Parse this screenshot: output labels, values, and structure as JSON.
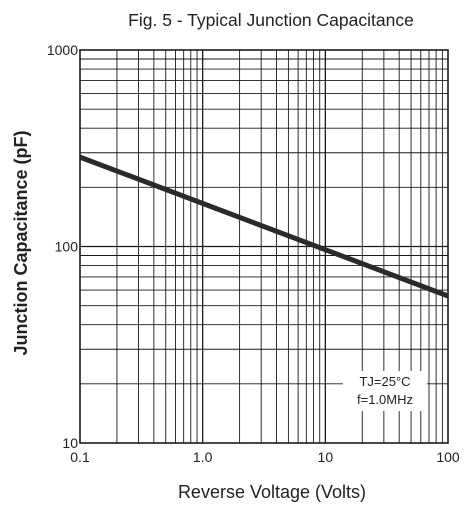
{
  "chart_data": {
    "type": "line",
    "title": "Fig. 5 - Typical Junction Capacitance",
    "xlabel": "Reverse Voltage (Volts)",
    "ylabel": "Junction Capacitance (pF)",
    "x_scale": "log",
    "y_scale": "log",
    "xlim": [
      0.1,
      100
    ],
    "ylim": [
      10,
      1000
    ],
    "x_ticks": [
      0.1,
      1.0,
      10,
      100
    ],
    "x_tick_labels": [
      "0.1",
      "1.0",
      "10",
      "100"
    ],
    "y_ticks": [
      10,
      100,
      1000
    ],
    "y_tick_labels": [
      "10",
      "100",
      "1000"
    ],
    "grid": true,
    "annotations": [
      "TJ=25°C",
      "f=1.0MHz"
    ],
    "series": [
      {
        "x": [
          0.1,
          100
        ],
        "y": [
          285,
          56
        ]
      }
    ]
  }
}
